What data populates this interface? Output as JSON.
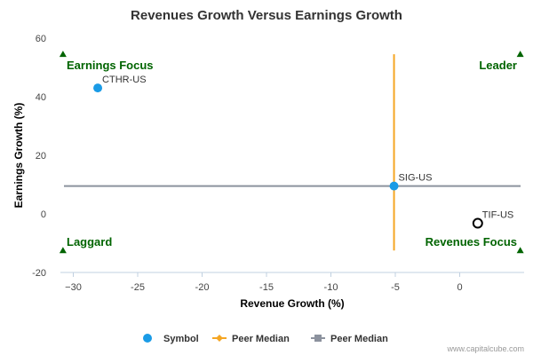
{
  "chart_data": {
    "type": "scatter",
    "title": "Revenues Growth Versus Earnings Growth",
    "xlabel": "Revenue Growth (%)",
    "ylabel": "Earnings Growth (%)",
    "xlim": [
      -31,
      5
    ],
    "ylim": [
      -20,
      60
    ],
    "x_ticks": [
      -30,
      -25,
      -20,
      -15,
      -10,
      -5,
      0
    ],
    "y_ticks": [
      -20,
      0,
      20,
      40,
      60
    ],
    "x_tick_labels": [
      "−30",
      "-25",
      "-20",
      "-15",
      "-10",
      "-5",
      "0"
    ],
    "y_tick_labels": [
      "-20",
      "0",
      "20",
      "40",
      "60"
    ],
    "grid": false,
    "points": [
      {
        "label": "CTHR-US",
        "x": -28.1,
        "y": 43,
        "style": "filled",
        "color": "#1a9be6"
      },
      {
        "label": "SIG-US",
        "x": -5.1,
        "y": 9.5,
        "style": "filled",
        "color": "#1a9be6"
      },
      {
        "label": "TIF-US",
        "x": 1.4,
        "y": -3.2,
        "style": "hollow",
        "color": "#000000"
      }
    ],
    "peer_median": {
      "x": -5.1,
      "y": 9.5,
      "x_color": "#f5a623",
      "y_color": "#8c929e"
    },
    "quadrants": {
      "top_left": "Earnings Focus",
      "top_right": "Leader",
      "bottom_left": "Laggard",
      "bottom_right": "Revenues Focus",
      "color": "#006400"
    },
    "legend": {
      "placement": "bottom-center",
      "items": [
        {
          "label": "Symbol",
          "marker": "circle",
          "color": "#1a9be6"
        },
        {
          "label": "Peer Median",
          "marker": "diamond",
          "color": "#f5a623"
        },
        {
          "label": "Peer Median",
          "marker": "square",
          "color": "#8c929e"
        }
      ]
    },
    "credit": "www.capitalcube.com"
  }
}
